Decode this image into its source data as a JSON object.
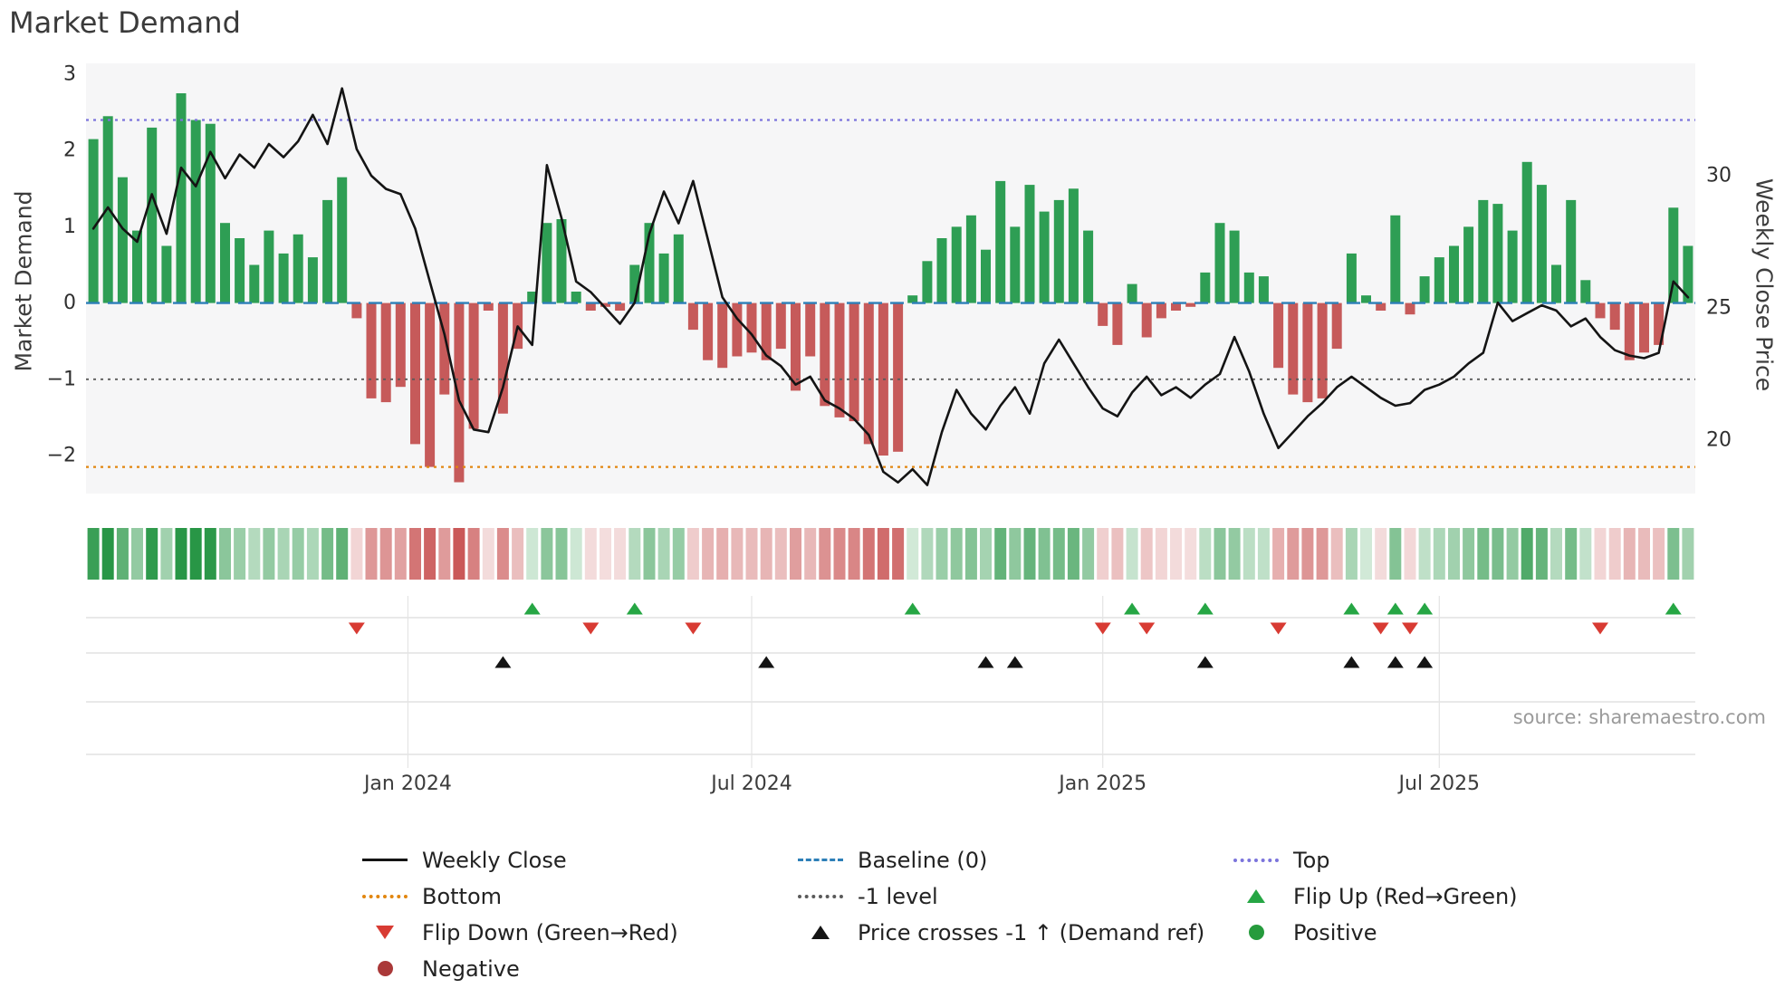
{
  "title": "Market Demand",
  "source": "source: sharemaestro.com",
  "colors": {
    "bar_positive": "#2e9e54",
    "bar_negative": "#c65a5a",
    "price_line": "#141414",
    "top_line": "#7b74dc",
    "baseline": "#2d7fb8",
    "neg1_line": "#5a5a5a",
    "bottom_line": "#e2860f",
    "flip_up": "#26a644",
    "flip_down": "#d83b33",
    "price_cross": "#141414",
    "positive": "#269b3d",
    "negative": "#aa3939",
    "plot_bg": "#f6f6f7",
    "panel_line": "#dcdcdc",
    "v_grid": "#e4e4e4",
    "tick_text": "#2f2f2f",
    "x_label_text": "#3c3c3c"
  },
  "chart_data": {
    "type": "bar+line",
    "title": "Market Demand",
    "x_unit": "weeks",
    "demand_axis": {
      "label": "Market Demand",
      "ticks": [
        3,
        2,
        1,
        0,
        -1,
        -2
      ],
      "range": [
        -2.6,
        3.1
      ]
    },
    "price_axis": {
      "label": "Weekly Close Price",
      "ticks": [
        30,
        25,
        20
      ],
      "range": [
        17.5,
        33.8
      ]
    },
    "x_ticks": [
      {
        "label": "Jan 2024",
        "index": 21.5
      },
      {
        "label": "Jul 2024",
        "index": 45
      },
      {
        "label": "Jan 2025",
        "index": 69
      },
      {
        "label": "Jul 2025",
        "index": 92
      }
    ],
    "series": [
      {
        "name": "Market Demand",
        "type": "bar",
        "values": [
          2.15,
          2.45,
          1.65,
          0.95,
          2.3,
          0.75,
          2.75,
          2.4,
          2.35,
          1.05,
          0.85,
          0.5,
          0.95,
          0.65,
          0.9,
          0.6,
          1.35,
          1.65,
          -0.2,
          -1.25,
          -1.3,
          -1.1,
          -1.85,
          -2.15,
          -1.2,
          -2.35,
          -1.65,
          -0.1,
          -1.45,
          -0.6,
          0.15,
          1.05,
          1.1,
          0.15,
          -0.1,
          -0.05,
          -0.1,
          0.5,
          1.05,
          0.65,
          0.9,
          -0.35,
          -0.75,
          -0.85,
          -0.7,
          -0.65,
          -0.75,
          -0.6,
          -1.15,
          -0.7,
          -1.35,
          -1.5,
          -1.55,
          -1.85,
          -2.0,
          -1.95,
          0.1,
          0.55,
          0.85,
          1.0,
          1.15,
          0.7,
          1.6,
          1.0,
          1.55,
          1.2,
          1.35,
          1.5,
          0.95,
          -0.3,
          -0.55,
          0.25,
          -0.45,
          -0.2,
          -0.1,
          -0.05,
          0.4,
          1.05,
          0.95,
          0.4,
          0.35,
          -0.85,
          -1.2,
          -1.3,
          -1.25,
          -0.6,
          0.65,
          0.1,
          -0.1,
          1.15,
          -0.15,
          0.35,
          0.6,
          0.75,
          1.0,
          1.35,
          1.3,
          0.95,
          1.85,
          1.55,
          0.5,
          1.35,
          0.3,
          -0.2,
          -0.35,
          -0.75,
          -0.65,
          -0.55,
          1.25,
          0.75
        ]
      },
      {
        "name": "Weekly Close",
        "type": "line",
        "values": [
          28.0,
          28.8,
          28.0,
          27.5,
          29.3,
          27.8,
          30.3,
          29.6,
          30.9,
          29.9,
          30.8,
          30.3,
          31.2,
          30.7,
          31.3,
          32.3,
          31.2,
          33.3,
          31.0,
          30.0,
          29.5,
          29.3,
          28.0,
          26.0,
          24.0,
          21.5,
          20.4,
          20.3,
          22.0,
          24.3,
          23.6,
          30.4,
          28.4,
          26.0,
          25.6,
          25.0,
          24.4,
          25.2,
          27.8,
          29.4,
          28.2,
          29.8,
          27.6,
          25.4,
          24.6,
          24.0,
          23.2,
          22.8,
          22.1,
          22.4,
          21.5,
          21.2,
          20.8,
          20.2,
          18.8,
          18.4,
          18.9,
          18.3,
          20.3,
          21.9,
          21.0,
          20.4,
          21.3,
          22.0,
          21.0,
          22.9,
          23.8,
          22.9,
          22.0,
          21.2,
          20.9,
          21.8,
          22.4,
          21.7,
          22.0,
          21.6,
          22.1,
          22.5,
          23.9,
          22.6,
          21.0,
          19.7,
          20.3,
          20.9,
          21.4,
          22.0,
          22.4,
          22.0,
          21.6,
          21.3,
          21.4,
          21.9,
          22.1,
          22.4,
          22.9,
          23.3,
          25.2,
          24.5,
          24.8,
          25.1,
          24.9,
          24.3,
          24.6,
          23.9,
          23.4,
          23.2,
          23.1,
          23.3,
          26.0,
          25.4
        ]
      }
    ],
    "ref_lines": [
      {
        "name": "Top",
        "value": 2.4,
        "style": "dotted",
        "color_key": "top_line"
      },
      {
        "name": "Baseline (0)",
        "value": 0,
        "style": "dashed",
        "color_key": "baseline"
      },
      {
        "name": "-1 level",
        "value": -1,
        "style": "dotted",
        "color_key": "neg1_line"
      },
      {
        "name": "Bottom",
        "value": -2.15,
        "style": "dotted",
        "color_key": "bottom_line"
      }
    ],
    "markers": {
      "flip_up": [
        30,
        37,
        56,
        71,
        76,
        86,
        89,
        91,
        108
      ],
      "flip_down": [
        18,
        34,
        41,
        69,
        72,
        81,
        88,
        90,
        103
      ],
      "price_cross": [
        28,
        46,
        61,
        63,
        76,
        86,
        89,
        91
      ]
    },
    "heatmap": {
      "source_series": "Market Demand",
      "scale_abs_max": 2.4
    },
    "legend_position": "bottom",
    "grid": "partial (lower marker panel only)"
  },
  "legend": {
    "items": [
      {
        "label": "Weekly Close",
        "swatch": "line",
        "line_style": "solid",
        "color_key": "price_line"
      },
      {
        "label": "Baseline (0)",
        "swatch": "line",
        "line_style": "dashed",
        "color_key": "baseline"
      },
      {
        "label": "Top",
        "swatch": "line",
        "line_style": "dotted",
        "color_key": "top_line"
      },
      {
        "label": "Bottom",
        "swatch": "line",
        "line_style": "dotted",
        "color_key": "bottom_line"
      },
      {
        "label": "-1 level",
        "swatch": "line",
        "line_style": "dotted",
        "color_key": "neg1_line"
      },
      {
        "label": "Flip Up (Red→Green)",
        "swatch": "triangle-up",
        "color_key": "flip_up"
      },
      {
        "label": "Flip Down (Green→Red)",
        "swatch": "triangle-down",
        "color_key": "flip_down"
      },
      {
        "label": "Price crosses -1 ↑ (Demand ref)",
        "swatch": "triangle-up",
        "color_key": "price_cross"
      },
      {
        "label": "Positive",
        "swatch": "circle",
        "color_key": "positive"
      },
      {
        "label": "Negative",
        "swatch": "circle",
        "color_key": "negative"
      }
    ]
  }
}
